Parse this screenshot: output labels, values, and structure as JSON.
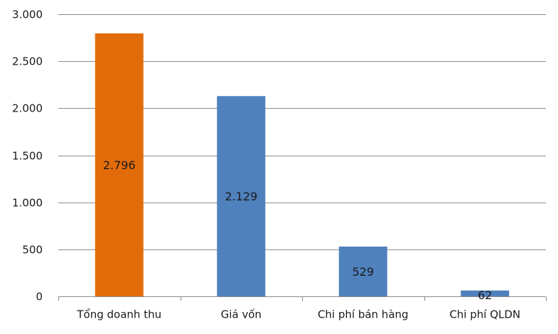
{
  "chart_data": {
    "type": "bar",
    "categories": [
      "Tổng doanh thu",
      "Giá vốn",
      "Chi phí bán hàng",
      "Chi phí QLDN"
    ],
    "values": [
      2796,
      2129,
      529,
      62
    ],
    "data_labels": [
      "2.796",
      "2.129",
      "529",
      "62"
    ],
    "bar_colors": [
      "#E36C0A",
      "#4F81BD",
      "#4F81BD",
      "#4F81BD"
    ],
    "yticks": [
      0,
      500,
      1000,
      1500,
      2000,
      2500,
      3000
    ],
    "ytick_labels": [
      "0",
      "500",
      "1.000",
      "1.500",
      "2.000",
      "2.500",
      "3.000"
    ],
    "ylim": [
      0,
      3000
    ],
    "grid": true,
    "grid_color": "#8c8c8c",
    "legend": false,
    "title": "",
    "xlabel": "",
    "ylabel": ""
  }
}
